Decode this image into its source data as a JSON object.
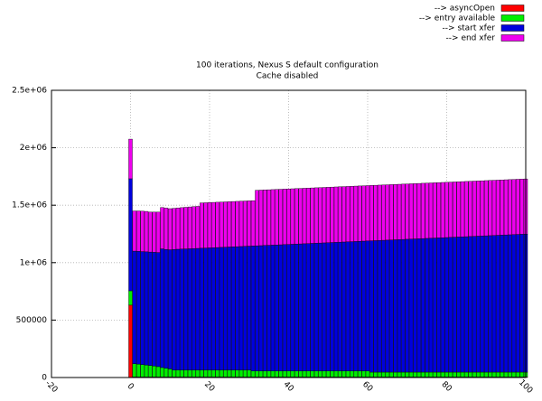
{
  "chart_data": {
    "type": "bar",
    "stacked": true,
    "title": "100 iterations, Nexus S default configuration",
    "subtitle": "Cache disabled",
    "xlim": [
      -20,
      100
    ],
    "xticks": [
      -20,
      0,
      20,
      40,
      60,
      80,
      100
    ],
    "ylim": [
      0,
      2500000
    ],
    "yticks": [
      0,
      500000,
      {
        "value": 1000000,
        "label": "1e+06"
      },
      {
        "value": 1500000,
        "label": "1.5e+06"
      },
      {
        "value": 2000000,
        "label": "2e+06"
      },
      {
        "value": 2500000,
        "label": "2.5e+06"
      }
    ],
    "grid": true,
    "legend": "top-right",
    "x": [
      0,
      1,
      2,
      3,
      4,
      5,
      6,
      7,
      8,
      9,
      10,
      11,
      12,
      13,
      14,
      15,
      16,
      17,
      18,
      19,
      20,
      21,
      22,
      23,
      24,
      25,
      26,
      27,
      28,
      29,
      30,
      31,
      32,
      33,
      34,
      35,
      36,
      37,
      38,
      39,
      40,
      41,
      42,
      43,
      44,
      45,
      46,
      47,
      48,
      49,
      50,
      51,
      52,
      53,
      54,
      55,
      56,
      57,
      58,
      59,
      60,
      61,
      62,
      63,
      64,
      65,
      66,
      67,
      68,
      69,
      70,
      71,
      72,
      73,
      74,
      75,
      76,
      77,
      78,
      79,
      80,
      81,
      82,
      83,
      84,
      85,
      86,
      87,
      88,
      89,
      90,
      91,
      92,
      93,
      94,
      95,
      96,
      97,
      98,
      99,
      100
    ],
    "series": [
      {
        "name": "--> asyncOpen",
        "color": "#ff0000",
        "values": [
          630000,
          5000,
          5000,
          5000,
          5000,
          5000,
          5000,
          5000,
          5000,
          5000,
          5000,
          5000,
          5000,
          5000,
          5000,
          5000,
          5000,
          5000,
          5000,
          5000,
          5000,
          5000,
          5000,
          5000,
          5000,
          5000,
          5000,
          5000,
          5000,
          5000,
          5000,
          5000,
          5000,
          5000,
          5000,
          5000,
          5000,
          5000,
          5000,
          5000,
          5000,
          5000,
          5000,
          5000,
          5000,
          5000,
          5000,
          5000,
          5000,
          5000,
          5000,
          5000,
          5000,
          5000,
          5000,
          5000,
          5000,
          5000,
          5000,
          5000,
          5000,
          5000,
          5000,
          5000,
          5000,
          5000,
          5000,
          5000,
          5000,
          5000,
          5000,
          5000,
          5000,
          5000,
          5000,
          5000,
          5000,
          5000,
          5000,
          5000,
          5000,
          5000,
          5000,
          5000,
          5000,
          5000,
          5000,
          5000,
          5000,
          5000,
          5000,
          5000,
          5000,
          5000,
          5000,
          5000,
          5000,
          5000,
          5000,
          5000,
          5000
        ]
      },
      {
        "name": "--> entry available",
        "color": "#00ee00",
        "values": [
          125000,
          115000,
          112000,
          108000,
          104000,
          100000,
          95000,
          90000,
          82000,
          76000,
          70000,
          60000,
          60000,
          60000,
          60000,
          60000,
          60000,
          60000,
          60000,
          60000,
          60000,
          60000,
          60000,
          60000,
          60000,
          60000,
          60000,
          60000,
          60000,
          60000,
          60000,
          52000,
          52000,
          52000,
          52000,
          52000,
          52000,
          52000,
          52000,
          52000,
          52000,
          52000,
          52000,
          52000,
          52000,
          52000,
          52000,
          52000,
          52000,
          52000,
          52000,
          52000,
          52000,
          52000,
          52000,
          52000,
          52000,
          52000,
          52000,
          52000,
          52000,
          42000,
          42000,
          42000,
          42000,
          42000,
          42000,
          42000,
          42000,
          42000,
          42000,
          42000,
          42000,
          42000,
          42000,
          42000,
          42000,
          42000,
          42000,
          42000,
          42000,
          42000,
          42000,
          42000,
          42000,
          42000,
          42000,
          42000,
          42000,
          42000,
          42000,
          42000,
          42000,
          42000,
          42000,
          42000,
          42000,
          42000,
          42000,
          42000,
          42000
        ]
      },
      {
        "name": "--> start xfer",
        "color": "#0000dd",
        "values": [
          975000,
          980000,
          981000,
          983000,
          985000,
          987000,
          990000,
          993000,
          1033000,
          1034000,
          1037000,
          1050000,
          1051500,
          1053000,
          1054500,
          1056000,
          1057500,
          1059000,
          1060500,
          1062000,
          1063500,
          1065000,
          1066500,
          1068000,
          1069500,
          1071000,
          1072500,
          1074000,
          1075500,
          1077000,
          1078500,
          1088000,
          1089500,
          1091000,
          1092500,
          1094000,
          1095500,
          1097000,
          1098500,
          1100000,
          1101500,
          1103000,
          1104500,
          1106000,
          1107500,
          1109000,
          1110500,
          1112000,
          1113500,
          1115000,
          1116500,
          1118000,
          1119500,
          1121000,
          1122500,
          1124000,
          1125500,
          1127000,
          1128500,
          1130000,
          1131500,
          1143000,
          1144500,
          1146000,
          1147500,
          1149000,
          1150500,
          1152000,
          1153500,
          1155000,
          1156500,
          1158000,
          1159500,
          1161000,
          1162500,
          1164000,
          1165500,
          1167000,
          1168500,
          1170000,
          1171500,
          1173000,
          1174500,
          1176000,
          1177500,
          1179000,
          1180500,
          1182000,
          1183500,
          1185000,
          1186500,
          1188000,
          1189500,
          1191000,
          1192500,
          1194000,
          1195500,
          1197000,
          1198500,
          1200000,
          1201500
        ]
      },
      {
        "name": "--> end xfer",
        "color": "#ee00ee",
        "values": [
          345000,
          350000,
          352000,
          352000,
          352000,
          348000,
          350000,
          352000,
          360000,
          360000,
          358000,
          358000,
          359500,
          361000,
          362500,
          364000,
          365500,
          366000,
          394500,
          394500,
          394500,
          394500,
          394500,
          394500,
          394500,
          394500,
          394500,
          394500,
          394500,
          394500,
          394500,
          394500,
          483500,
          483450,
          483400,
          483350,
          483300,
          483250,
          483200,
          483150,
          483100,
          483050,
          483000,
          482950,
          482900,
          482850,
          482800,
          482750,
          482700,
          482650,
          482600,
          482550,
          482500,
          482450,
          482400,
          482350,
          482300,
          482250,
          482200,
          482150,
          482100,
          482050,
          482000,
          481950,
          481900,
          481850,
          481800,
          481750,
          481700,
          481650,
          481600,
          481550,
          481500,
          481450,
          481400,
          481350,
          481300,
          481250,
          481200,
          481150,
          481100,
          481050,
          481000,
          480950,
          480900,
          480850,
          480800,
          480750,
          480700,
          480650,
          480600,
          480550,
          480500,
          480450,
          480400,
          480350,
          480300,
          480250,
          480200,
          480150,
          480100
        ]
      }
    ]
  }
}
